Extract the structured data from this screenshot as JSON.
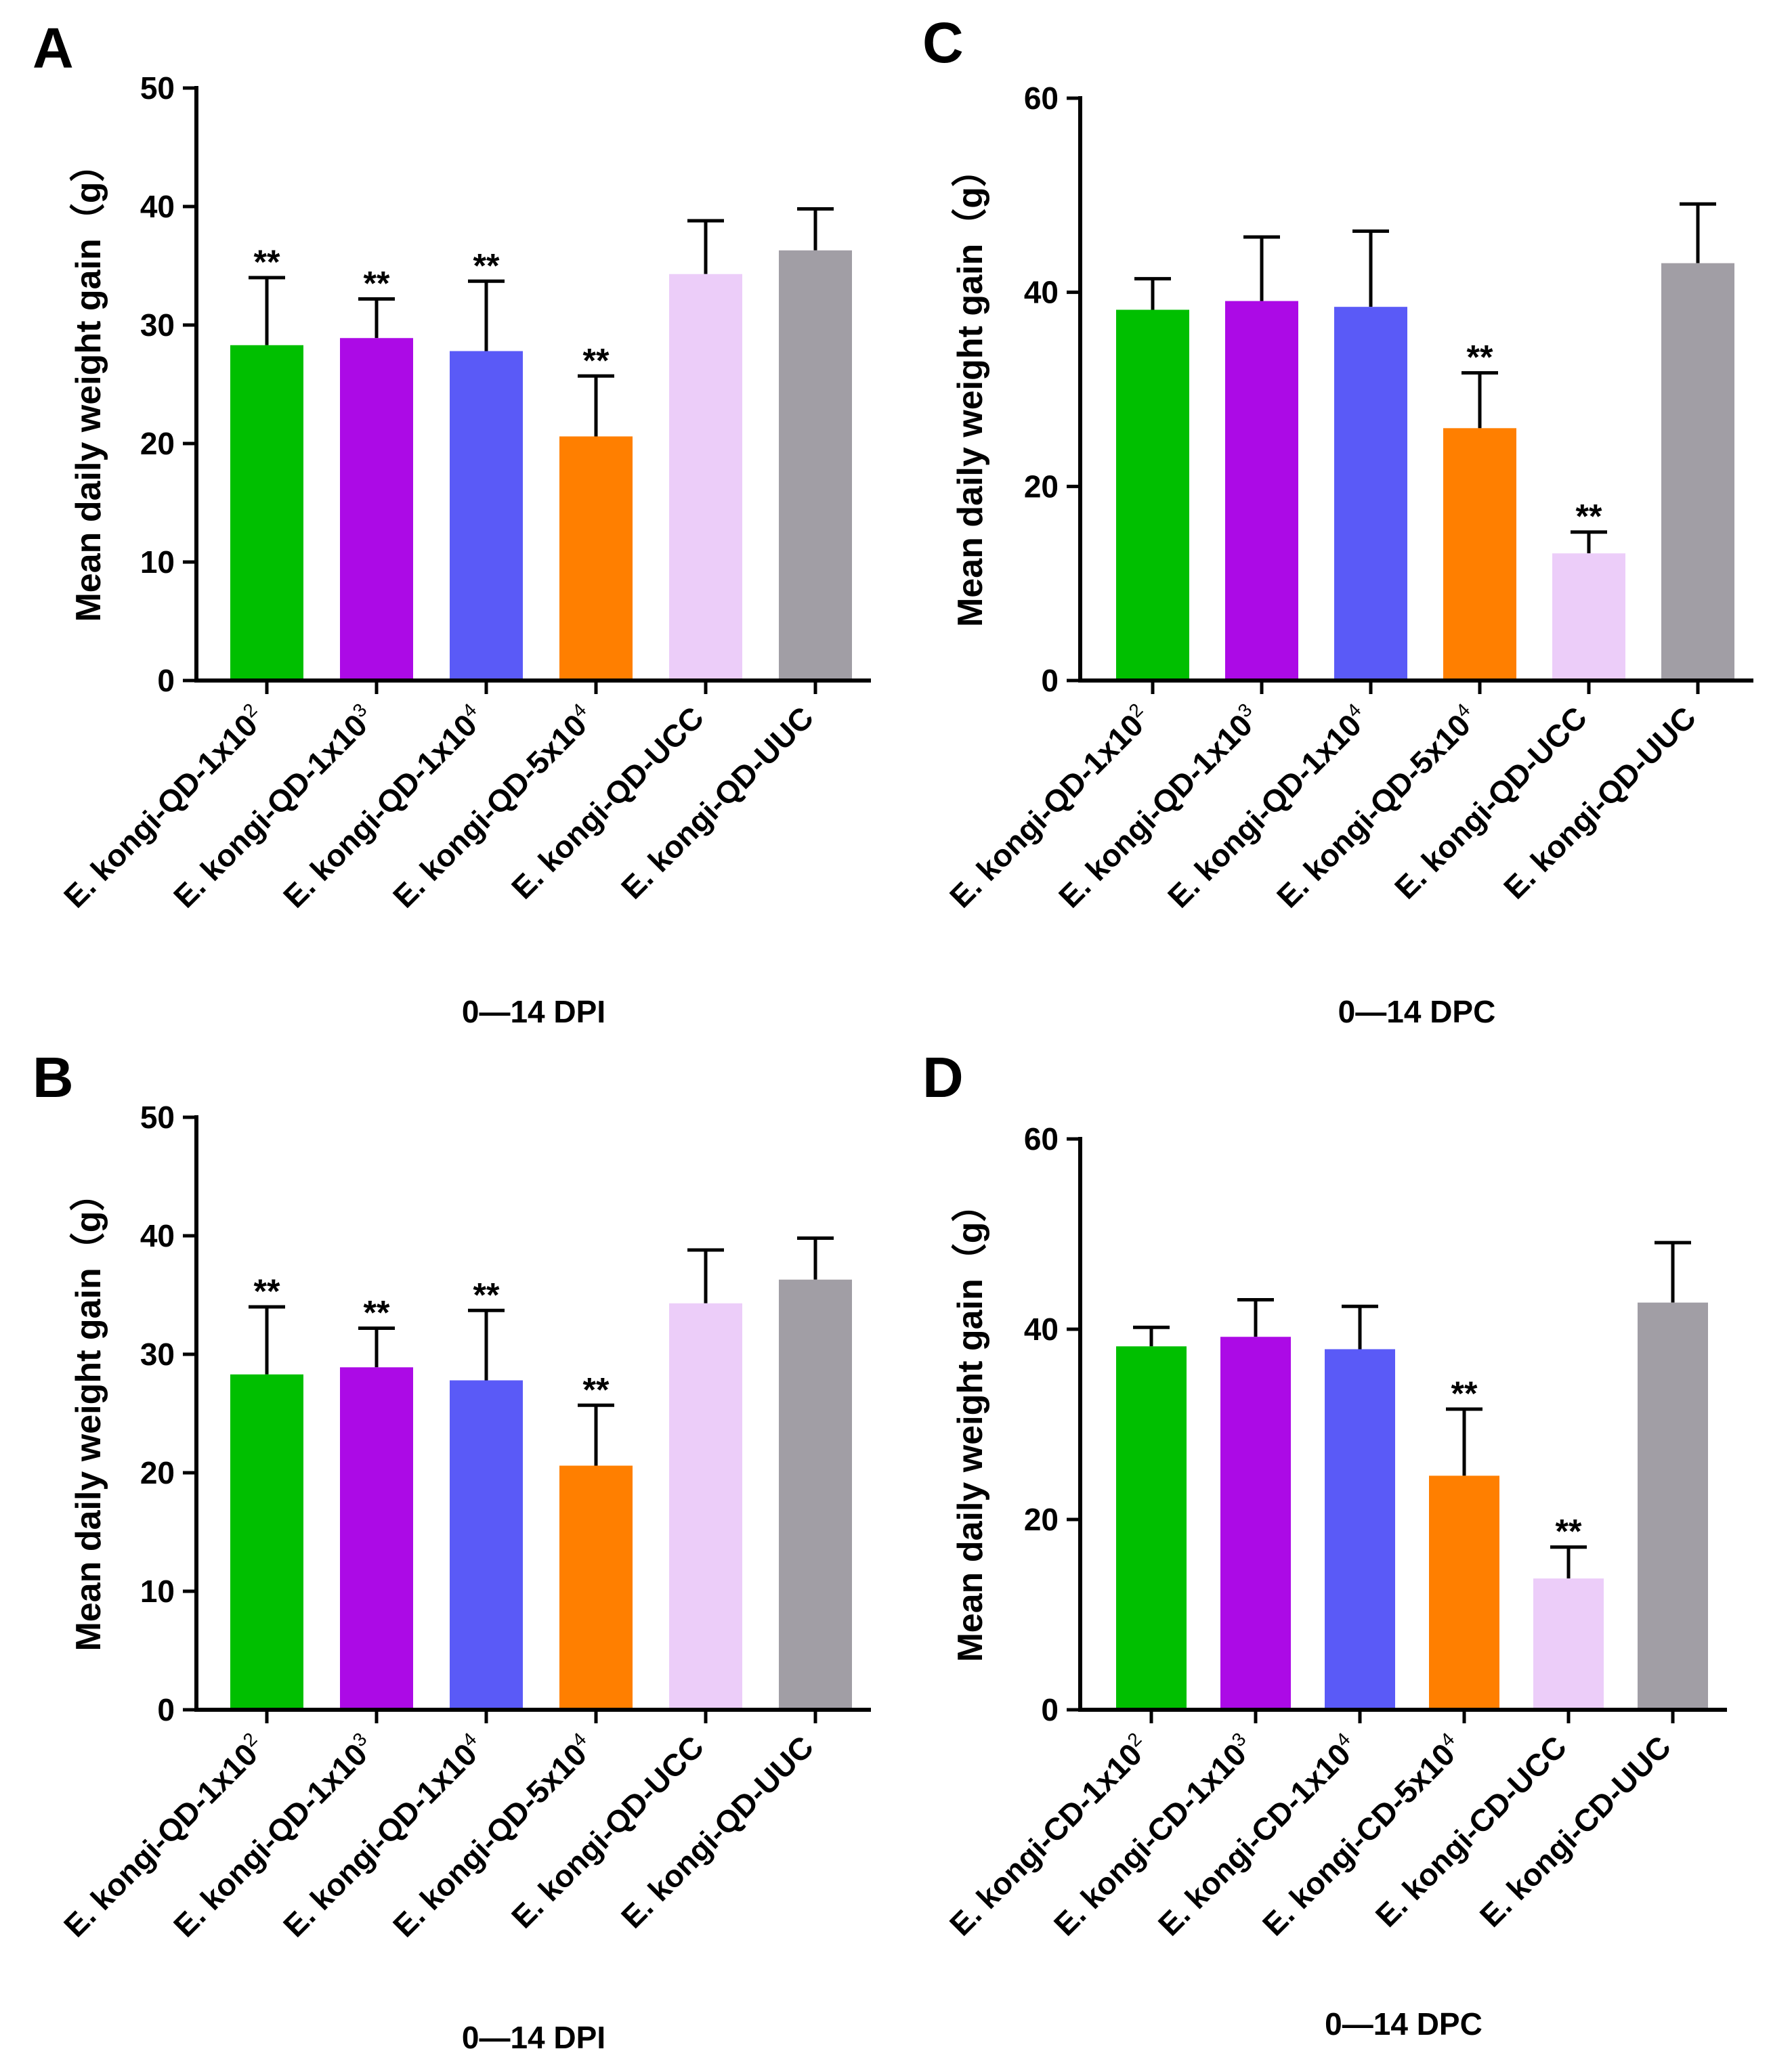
{
  "colors": [
    "#00bf00",
    "#ac0ae6",
    "#5a5af7",
    "#ff7f00",
    "#eccdf9",
    "#a19ea5"
  ],
  "chart_data": [
    {
      "panel": "A",
      "type": "bar",
      "categories": [
        {
          "base": "E. kongi-QD-1x10",
          "sup": "2"
        },
        {
          "base": "E. kongi-QD-1x10",
          "sup": "3"
        },
        {
          "base": "E. kongi-QD-1x10",
          "sup": "4"
        },
        {
          "base": "E. kongi-QD-5x10",
          "sup": "4"
        },
        {
          "base": "E. kongi-QD-UCC",
          "sup": ""
        },
        {
          "base": "E. kongi-QD-UUC",
          "sup": ""
        }
      ],
      "values": [
        28.3,
        28.9,
        27.8,
        20.6,
        34.3,
        36.3
      ],
      "errors": [
        5.7,
        3.3,
        5.9,
        5.1,
        4.5,
        3.5
      ],
      "significance": [
        "**",
        "**",
        "**",
        "**",
        "",
        ""
      ],
      "ylabel": "Mean daily weight gain（g）",
      "xlabel": "0—14 DPI",
      "ylim": [
        0,
        50
      ],
      "yticks": [
        0,
        10,
        20,
        30,
        40,
        50
      ]
    },
    {
      "panel": "C",
      "type": "bar",
      "categories": [
        {
          "base": "E. kongi-QD-1x10",
          "sup": "2"
        },
        {
          "base": "E. kongi-QD-1x10",
          "sup": "3"
        },
        {
          "base": "E. kongi-QD-1x10",
          "sup": "4"
        },
        {
          "base": "E. kongi-QD-5x10",
          "sup": "4"
        },
        {
          "base": "E. kongi-QD-UCC",
          "sup": ""
        },
        {
          "base": "E. kongi-QD-UUC",
          "sup": ""
        }
      ],
      "values": [
        38.2,
        39.1,
        38.5,
        26.0,
        13.1,
        43.0
      ],
      "errors": [
        3.2,
        6.6,
        7.8,
        5.7,
        2.2,
        6.1
      ],
      "significance": [
        "",
        "",
        "",
        "**",
        "**",
        ""
      ],
      "ylabel": "Mean daily weight gain（g）",
      "xlabel": "0—14 DPC",
      "ylim": [
        0,
        60
      ],
      "yticks": [
        0,
        20,
        40,
        60
      ]
    },
    {
      "panel": "B",
      "type": "bar",
      "categories": [
        {
          "base": "E. kongi-QD-1x10",
          "sup": "2"
        },
        {
          "base": "E. kongi-QD-1x10",
          "sup": "3"
        },
        {
          "base": "E. kongi-QD-1x10",
          "sup": "4"
        },
        {
          "base": "E. kongi-QD-5x10",
          "sup": "4"
        },
        {
          "base": "E. kongi-QD-UCC",
          "sup": ""
        },
        {
          "base": "E. kongi-QD-UUC",
          "sup": ""
        }
      ],
      "values": [
        28.3,
        28.9,
        27.8,
        20.6,
        34.3,
        36.3
      ],
      "errors": [
        5.7,
        3.3,
        5.9,
        5.1,
        4.5,
        3.5
      ],
      "significance": [
        "**",
        "**",
        "**",
        "**",
        "",
        ""
      ],
      "ylabel": "Mean daily weight gain（g）",
      "xlabel": "0—14 DPI",
      "ylim": [
        0,
        50
      ],
      "yticks": [
        0,
        10,
        20,
        30,
        40,
        50
      ]
    },
    {
      "panel": "D",
      "type": "bar",
      "categories": [
        {
          "base": "E. kongi-CD-1x10",
          "sup": "2"
        },
        {
          "base": "E. kongi-CD-1x10",
          "sup": "3"
        },
        {
          "base": "E. kongi-CD-1x10",
          "sup": "4"
        },
        {
          "base": "E. kongi-CD-5x10",
          "sup": "4"
        },
        {
          "base": "E. kongi-CD-UCC",
          "sup": ""
        },
        {
          "base": "E. kongi-CD-UUC",
          "sup": ""
        }
      ],
      "values": [
        38.2,
        39.2,
        37.9,
        24.6,
        13.8,
        42.8
      ],
      "errors": [
        2.0,
        3.9,
        4.5,
        7.0,
        3.3,
        6.3
      ],
      "significance": [
        "",
        "",
        "",
        "**",
        "**",
        ""
      ],
      "ylabel": "Mean daily weight gain（g）",
      "xlabel": "0—14 DPC",
      "ylim": [
        0,
        60
      ],
      "yticks": [
        0,
        20,
        40,
        60
      ]
    }
  ]
}
